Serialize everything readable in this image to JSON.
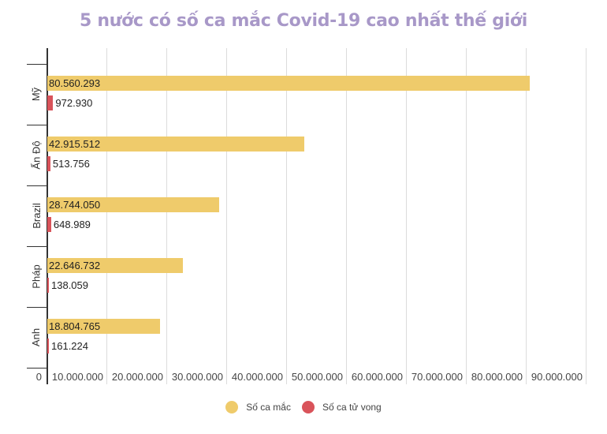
{
  "title": "5 nước có số ca mắc Covid-19 cao nhất thế giới",
  "legend": [
    {
      "label": "Số ca mắc",
      "color": "#efcb6b"
    },
    {
      "label": "Số ca tử vong",
      "color": "#d9535a"
    }
  ],
  "x_ticks": [
    "0",
    "10.000.000",
    "20.000.000",
    "30.000.000",
    "40.000.000",
    "50.000.000",
    "60.000.000",
    "70.000.000",
    "80.000.000",
    "90.000.000"
  ],
  "rows": [
    {
      "country": "Mỹ",
      "cases": 80560293,
      "cases_label": "80.560.293",
      "deaths": 972930,
      "deaths_label": "972.930"
    },
    {
      "country": "Ấn Độ",
      "cases": 42915512,
      "cases_label": "42.915.512",
      "deaths": 513756,
      "deaths_label": "513.756"
    },
    {
      "country": "Brazil",
      "cases": 28744050,
      "cases_label": "28.744.050",
      "deaths": 648989,
      "deaths_label": "648.989"
    },
    {
      "country": "Pháp",
      "cases": 22646732,
      "cases_label": "22.646.732",
      "deaths": 138059,
      "deaths_label": "138.059"
    },
    {
      "country": "Anh",
      "cases": 18804765,
      "cases_label": "18.804.765",
      "deaths": 161224,
      "deaths_label": "161.224"
    }
  ],
  "chart_data": {
    "type": "bar",
    "orientation": "horizontal",
    "title": "5 nước có số ca mắc Covid-19 cao nhất thế giới",
    "categories": [
      "Mỹ",
      "Ấn Độ",
      "Brazil",
      "Pháp",
      "Anh"
    ],
    "series": [
      {
        "name": "Số ca mắc",
        "color": "#efcb6b",
        "values": [
          80560293,
          42915512,
          28744050,
          22646732,
          18804765
        ]
      },
      {
        "name": "Số ca tử vong",
        "color": "#d9535a",
        "values": [
          972930,
          513756,
          648989,
          138059,
          161224
        ]
      }
    ],
    "xlabel": "",
    "ylabel": "",
    "xlim": [
      0,
      90000000
    ],
    "x_ticks": [
      0,
      10000000,
      20000000,
      30000000,
      40000000,
      50000000,
      60000000,
      70000000,
      80000000,
      90000000
    ],
    "grid": true,
    "legend_position": "bottom",
    "data_labels": true
  }
}
